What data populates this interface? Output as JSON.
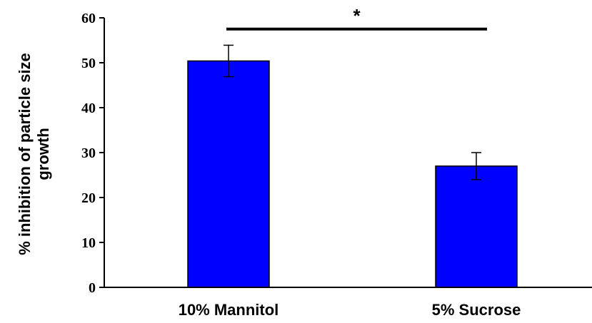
{
  "chart_data": {
    "type": "bar",
    "categories": [
      "10% Mannitol",
      "5% Sucrose"
    ],
    "values": [
      50.4,
      27.0
    ],
    "errors": [
      3.5,
      3.0
    ],
    "ylabel_lines": [
      "% inhibition of particle size",
      "growth"
    ],
    "xlabel": "",
    "ylim": [
      0,
      60
    ],
    "yticks": [
      0,
      10,
      20,
      30,
      40,
      50,
      60
    ],
    "grid": false,
    "legend": "none",
    "bar_color": "#0000FF",
    "bar_edge_color": "#000000",
    "significance": {
      "between": [
        0,
        1
      ],
      "label": "*",
      "level": 57.5
    }
  }
}
